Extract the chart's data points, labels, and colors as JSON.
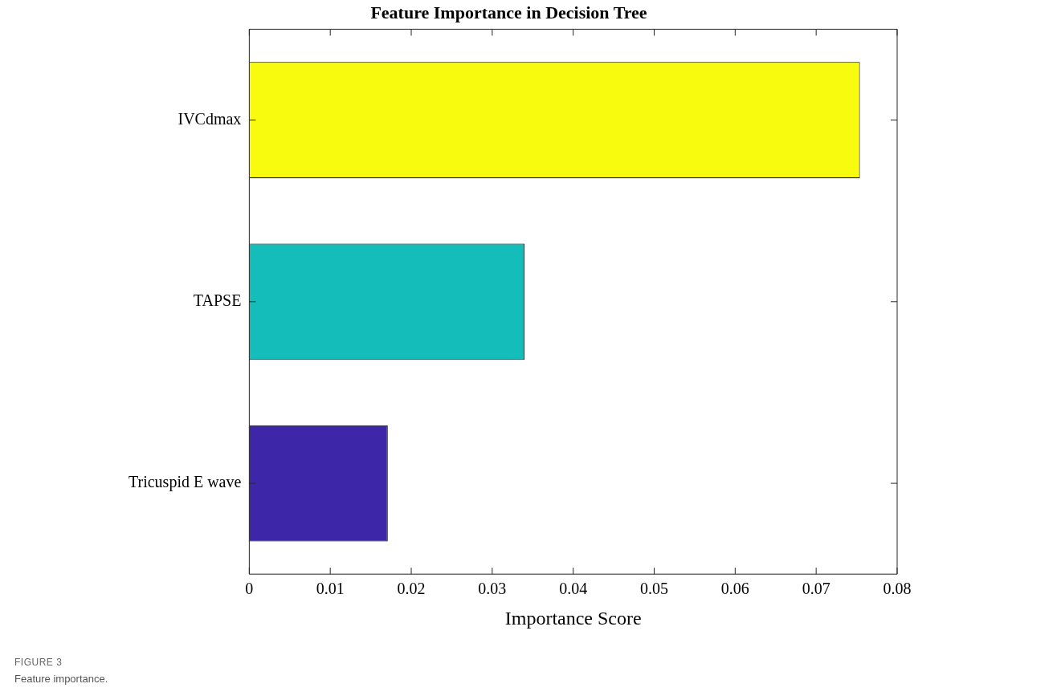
{
  "chart_data": {
    "type": "bar",
    "orientation": "horizontal",
    "title": "Feature Importance in Decision Tree",
    "xlabel": "Importance Score",
    "categories": [
      "IVCdmax",
      "TAPSE",
      "Tricuspid E wave"
    ],
    "values": [
      0.0754,
      0.034,
      0.0171
    ],
    "colors": [
      "#f9fb0e",
      "#14bdb9",
      "#3e26a8"
    ],
    "xlim": [
      0,
      0.08
    ],
    "xticks": [
      0,
      0.01,
      0.02,
      0.03,
      0.04,
      0.05,
      0.06,
      0.07,
      0.08
    ],
    "grid": false,
    "legend": false,
    "annotations": [
      "FIGURE 3",
      "Feature importance."
    ]
  }
}
